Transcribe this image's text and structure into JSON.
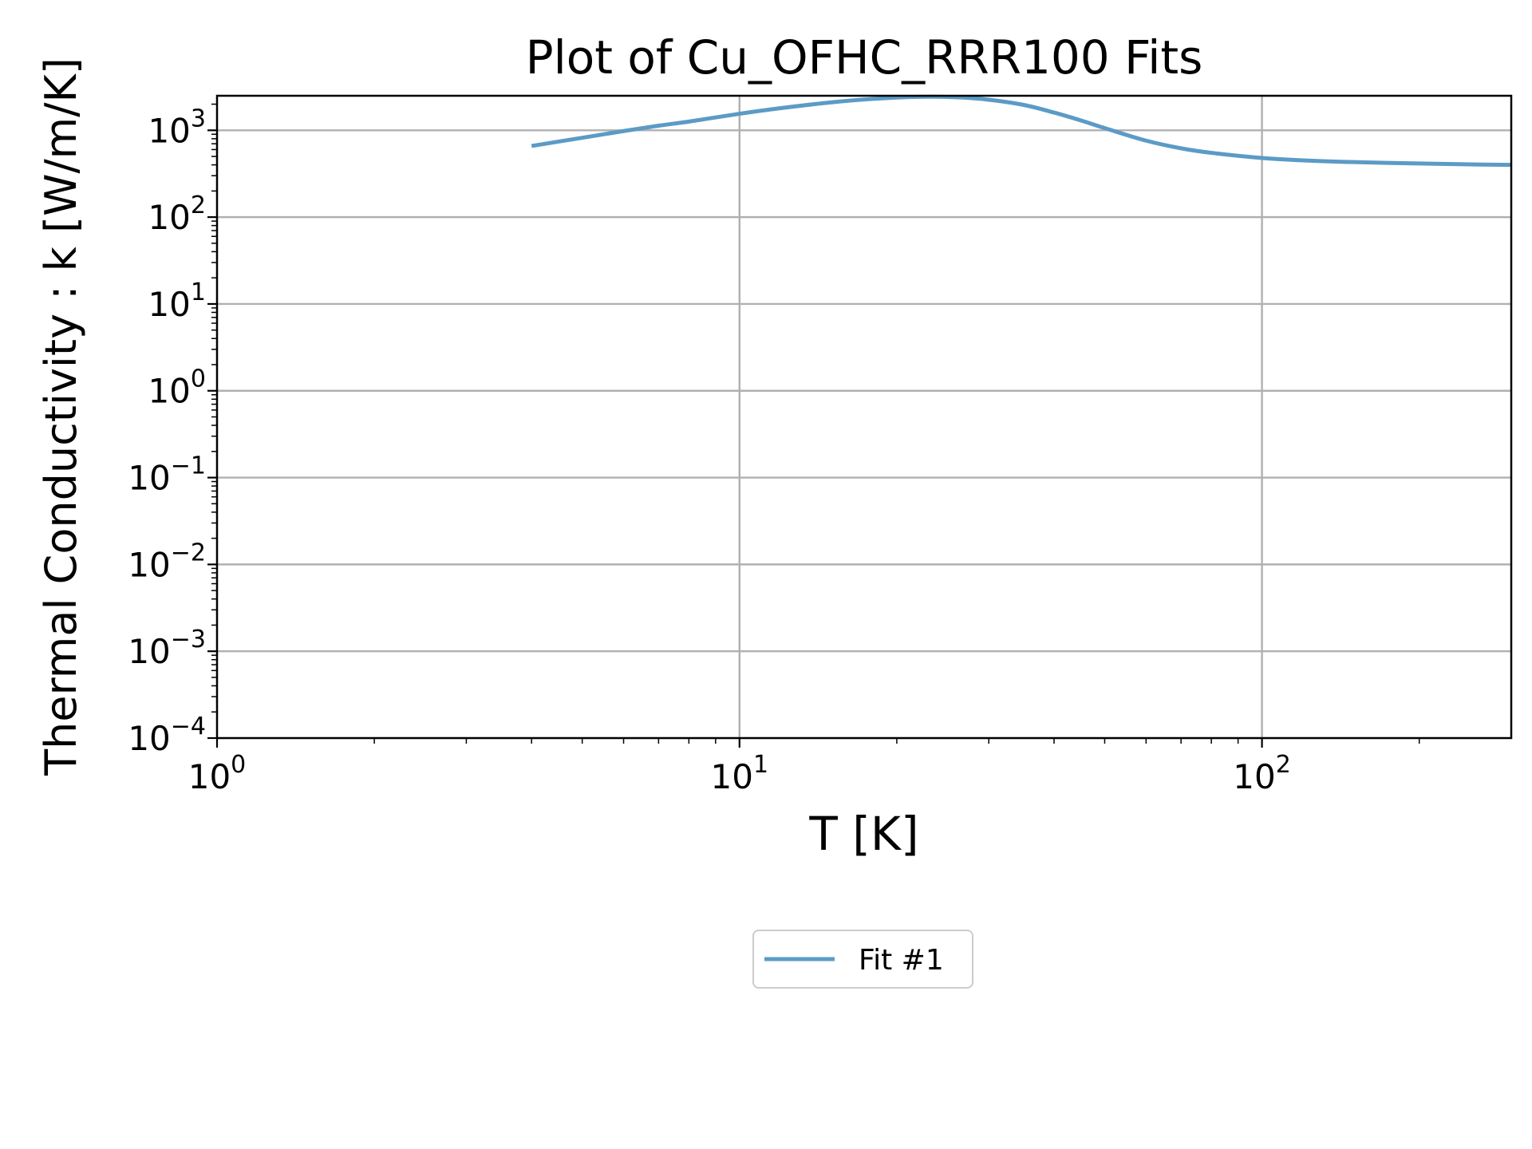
{
  "chart_data": {
    "type": "line",
    "title": "Plot of Cu_OFHC_RRR100 Fits",
    "xlabel": "T [K]",
    "ylabel": "Thermal Conductivity : k [W/m/K]",
    "x_scale": "log",
    "y_scale": "log",
    "xlim": [
      1,
      300
    ],
    "ylim": [
      0.0001,
      2500
    ],
    "x_ticks": [
      {
        "base": "10",
        "exp": "0",
        "value": 1
      },
      {
        "base": "10",
        "exp": "1",
        "value": 10
      },
      {
        "base": "10",
        "exp": "2",
        "value": 100
      }
    ],
    "y_ticks": [
      {
        "base": "10",
        "exp": "−4",
        "value": 0.0001
      },
      {
        "base": "10",
        "exp": "−3",
        "value": 0.001
      },
      {
        "base": "10",
        "exp": "−2",
        "value": 0.01
      },
      {
        "base": "10",
        "exp": "−1",
        "value": 0.1
      },
      {
        "base": "10",
        "exp": "0",
        "value": 1
      },
      {
        "base": "10",
        "exp": "1",
        "value": 10
      },
      {
        "base": "10",
        "exp": "2",
        "value": 100
      },
      {
        "base": "10",
        "exp": "3",
        "value": 1000
      }
    ],
    "grid": true,
    "legend_position": "below-center",
    "series": [
      {
        "name": "Fit #1",
        "color": "#5b9bc6",
        "x": [
          4,
          5,
          6,
          7,
          8,
          10,
          12,
          15,
          18,
          22,
          26,
          30,
          35,
          40,
          45,
          50,
          60,
          70,
          80,
          100,
          120,
          150,
          200,
          250,
          300
        ],
        "y": [
          660,
          820,
          980,
          1130,
          1260,
          1550,
          1800,
          2100,
          2300,
          2430,
          2400,
          2250,
          1960,
          1600,
          1300,
          1060,
          760,
          620,
          550,
          480,
          450,
          430,
          415,
          405,
          400
        ]
      }
    ]
  }
}
